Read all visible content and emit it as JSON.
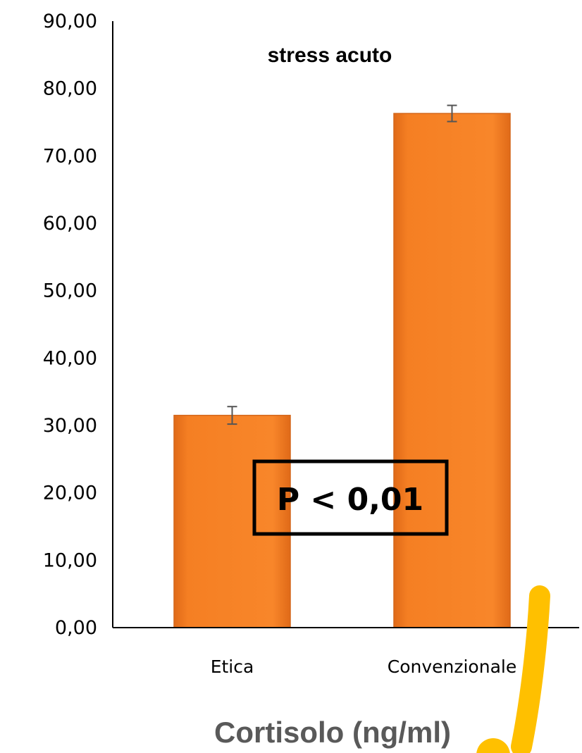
{
  "chart_data": {
    "type": "bar",
    "title": "stress acuto",
    "xlabel": "Cortisolo (ng/ml)",
    "ylabel": "",
    "categories": [
      "Etica",
      "Convenzionale"
    ],
    "values": [
      31.5,
      76.3
    ],
    "errors": [
      1.3,
      1.2
    ],
    "ylim": [
      0,
      90
    ],
    "yticks": [
      "0,00",
      "10,00",
      "20,00",
      "30,00",
      "40,00",
      "50,00",
      "60,00",
      "70,00",
      "80,00",
      "90,00"
    ],
    "grid": false,
    "legend": "none",
    "bar_color": "#F57F23",
    "bar_edge_color": "#D4661A",
    "annotation": "P < 0,01",
    "highlight_color": "#FFC000"
  }
}
